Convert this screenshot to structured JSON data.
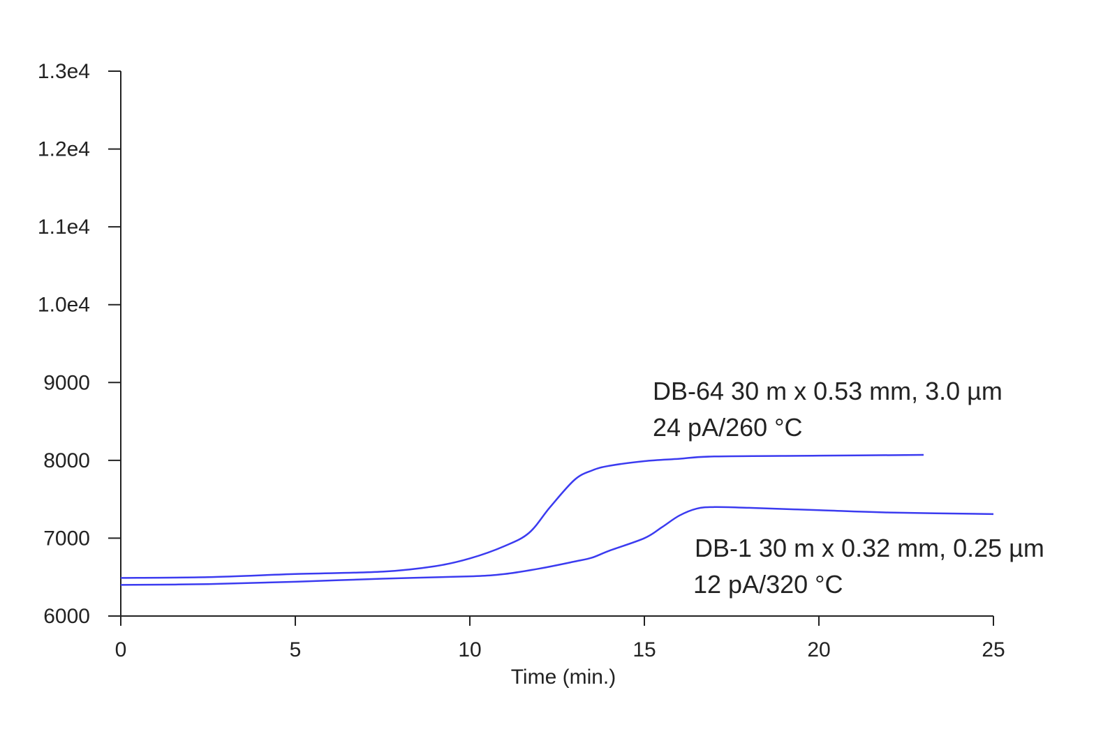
{
  "chart_data": {
    "type": "line",
    "title": "",
    "xlabel": "Time (min.)",
    "ylabel": "",
    "xlim": [
      0,
      25
    ],
    "ylim": [
      6000,
      13000
    ],
    "grid": false,
    "x_ticks": [
      "0",
      "5",
      "10",
      "15",
      "20",
      "25"
    ],
    "y_ticks": [
      "6000",
      "7000",
      "8000",
      "9000",
      "1.0e4",
      "1.1e4",
      "1.2e4",
      "1.3e4"
    ],
    "line_color": "#3b3bf0",
    "series": [
      {
        "name": "DB-64",
        "annotation": [
          "DB-64 30 m x 0.53 mm, 3.0 µm",
          "24 pA/260 °C"
        ],
        "x": [
          0,
          2.5,
          5,
          7.5,
          9,
          10,
          11,
          11.7,
          12.3,
          13,
          13.5,
          14,
          15,
          16,
          17,
          20,
          23
        ],
        "y": [
          6490,
          6500,
          6540,
          6570,
          6640,
          6740,
          6900,
          7070,
          7400,
          7750,
          7870,
          7930,
          7990,
          8020,
          8050,
          8060,
          8070
        ]
      },
      {
        "name": "DB-1",
        "annotation": [
          "DB-1 30 m x 0.32 mm, 0.25 µm",
          "12 pA/320 °C"
        ],
        "x": [
          0,
          2.5,
          5,
          7.5,
          10,
          11,
          12,
          13,
          13.5,
          14,
          15,
          15.5,
          16,
          16.5,
          17,
          18,
          20,
          22,
          25
        ],
        "y": [
          6400,
          6410,
          6440,
          6480,
          6510,
          6540,
          6610,
          6700,
          6750,
          6840,
          7000,
          7140,
          7290,
          7380,
          7400,
          7390,
          7360,
          7330,
          7310
        ]
      }
    ]
  }
}
